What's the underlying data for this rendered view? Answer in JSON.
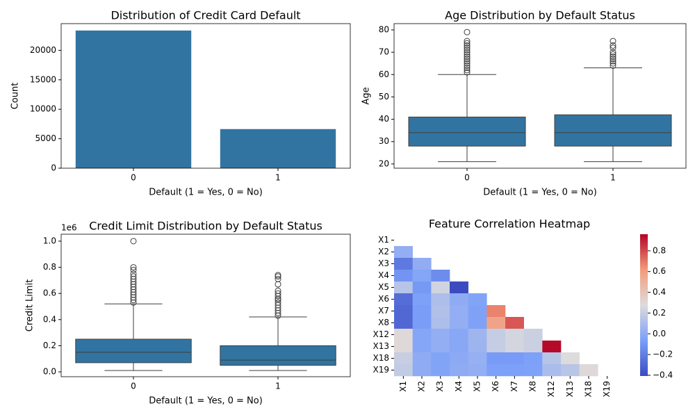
{
  "chart_data": [
    {
      "type": "bar",
      "title": "Distribution of Credit Card Default",
      "x_label": "Default (1 = Yes, 0 = No)",
      "y_label": "Count",
      "categories": [
        "0",
        "1"
      ],
      "values": [
        23364,
        6636
      ],
      "color": "#3274a1",
      "ylim": [
        0,
        24532
      ],
      "yticks": [
        0,
        5000,
        10000,
        15000,
        20000
      ]
    },
    {
      "type": "box",
      "title": "Age Distribution by Default Status",
      "x_label": "Default (1 = Yes, 0 = No)",
      "y_label": "Age",
      "categories": [
        "0",
        "1"
      ],
      "color": "#3274a1",
      "boxes": [
        {
          "whisker_low": 21,
          "q1": 28,
          "median": 34,
          "q3": 41,
          "whisker_high": 60,
          "outliers": [
            61,
            62,
            63,
            64,
            65,
            66,
            67,
            68,
            69,
            70,
            71,
            72,
            73,
            74,
            75,
            79
          ]
        },
        {
          "whisker_low": 21,
          "q1": 28,
          "median": 34,
          "q3": 42,
          "whisker_high": 63,
          "outliers": [
            64,
            65,
            66,
            67,
            68,
            69,
            70,
            72,
            73,
            75
          ]
        }
      ],
      "ylim": [
        18.1,
        82.8
      ],
      "yticks": [
        20,
        30,
        40,
        50,
        60,
        70,
        80
      ]
    },
    {
      "type": "box",
      "title": "Credit Limit Distribution by Default Status",
      "x_label": "Default (1 = Yes, 0 = No)",
      "y_label": "Credit Limit",
      "offset_label": "1e6",
      "categories": [
        "0",
        "1"
      ],
      "color": "#3274a1",
      "boxes": [
        {
          "whisker_low": 10000,
          "q1": 70000,
          "median": 150000,
          "q3": 250000,
          "whisker_high": 520000,
          "outliers": [
            530000,
            550000,
            570000,
            590000,
            610000,
            630000,
            650000,
            670000,
            690000,
            710000,
            730000,
            750000,
            780000,
            800000,
            1000000
          ]
        },
        {
          "whisker_low": 10000,
          "q1": 50000,
          "median": 90000,
          "q3": 200000,
          "whisker_high": 420000,
          "outliers": [
            430000,
            450000,
            470000,
            490000,
            510000,
            530000,
            550000,
            560000,
            580000,
            600000,
            620000,
            670000,
            710000,
            730000,
            740000
          ]
        }
      ],
      "ylim": [
        -37000,
        1053000
      ],
      "yticks": [
        {
          "value": 0,
          "label": "0.0"
        },
        {
          "value": 200000,
          "label": "0.2"
        },
        {
          "value": 400000,
          "label": "0.4"
        },
        {
          "value": 600000,
          "label": "0.6"
        },
        {
          "value": 800000,
          "label": "0.8"
        },
        {
          "value": 1000000,
          "label": "1.0"
        }
      ]
    },
    {
      "type": "heatmap",
      "title": "Feature Correlation Heatmap",
      "colormap": "coolwarm",
      "labels": [
        "X1",
        "X2",
        "X3",
        "X4",
        "X5",
        "X6",
        "X7",
        "X8",
        "X12",
        "X13",
        "X18",
        "X19"
      ],
      "matrix": [
        [],
        [
          0.02
        ],
        [
          -0.22,
          0.01
        ],
        [
          -0.11,
          -0.03,
          -0.14
        ],
        [
          0.14,
          -0.09,
          0.23,
          -0.41
        ],
        [
          -0.27,
          -0.06,
          0.11,
          0.0,
          -0.04
        ],
        [
          -0.29,
          -0.07,
          0.12,
          0.02,
          -0.05,
          0.67
        ],
        [
          -0.29,
          -0.07,
          0.11,
          0.02,
          -0.05,
          0.57,
          0.77
        ],
        [
          0.29,
          -0.03,
          0.02,
          -0.02,
          0.06,
          0.19,
          0.24,
          0.21
        ],
        [
          0.29,
          -0.03,
          0.02,
          -0.02,
          0.05,
          0.19,
          0.24,
          0.21,
          0.95
        ],
        [
          0.2,
          0.0,
          -0.04,
          -0.01,
          0.03,
          -0.08,
          -0.08,
          -0.06,
          0.14,
          0.28
        ],
        [
          0.18,
          0.0,
          -0.04,
          0.0,
          0.02,
          -0.06,
          -0.06,
          -0.05,
          0.1,
          0.15,
          0.29
        ]
      ],
      "clim": [
        -0.407,
        0.96
      ],
      "cticks": [
        {
          "value": -0.4,
          "label": "−0.4"
        },
        {
          "value": -0.2,
          "label": "−0.2"
        },
        {
          "value": 0,
          "label": "0.0"
        },
        0.2,
        0.4,
        0.6,
        0.8
      ]
    }
  ]
}
